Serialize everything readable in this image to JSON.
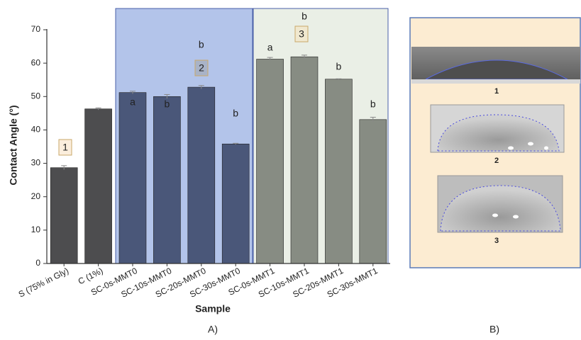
{
  "chart_data": {
    "type": "bar",
    "y_label": "Contact Angle (°)",
    "x_label": "Sample",
    "categories": [
      "S (75% in Gly)",
      "C (1%)",
      "SC-0s-MMT0",
      "SC-10s-MMT0",
      "SC-20s-MMT0",
      "SC-30s-MMT0",
      "SC-0s-MMT1",
      "SC-10s-MMT1",
      "SC-20s-MMT1",
      "SC-30s-MMT1"
    ],
    "values": [
      28.7,
      46.3,
      51.2,
      50.0,
      52.8,
      35.8,
      61.2,
      61.9,
      55.2,
      43.1
    ],
    "errors": [
      0.6,
      0.3,
      0.4,
      0.6,
      0.5,
      0.2,
      0.5,
      0.5,
      0.1,
      0.7
    ],
    "colors": [
      "#4d4d4f",
      "#4d4d4f",
      "#4a5779",
      "#4a5779",
      "#4a5779",
      "#4a5779",
      "#878c83",
      "#878c83",
      "#878c83",
      "#878c83"
    ],
    "significance": [
      null,
      null,
      "a",
      "b",
      "b",
      "b",
      "a",
      "b",
      "b",
      "b"
    ],
    "groups": [
      "1",
      "2",
      "3"
    ],
    "ylim": [
      0,
      70
    ],
    "yticks": [
      0,
      10,
      20,
      30,
      40,
      50,
      60,
      70
    ],
    "caption": "A)"
  },
  "panel_b": {
    "labels": [
      "1",
      "2",
      "3"
    ],
    "caption": "B)"
  }
}
